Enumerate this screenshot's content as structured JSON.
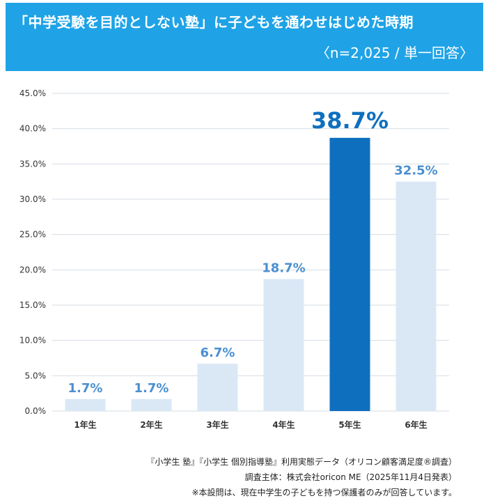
{
  "header": {
    "title": "「中学受験を目的としない塾」に子どもを通わせはじめた時期",
    "subtitle": "〈n=2,025 / 単一回答〉"
  },
  "chart_data": {
    "type": "bar",
    "title": "「中学受験を目的としない塾」に子どもを通わせはじめた時期",
    "subtitle": "〈n=2,025 / 単一回答〉",
    "categories": [
      "1年生",
      "2年生",
      "3年生",
      "4年生",
      "5年生",
      "6年生"
    ],
    "values": [
      1.7,
      1.7,
      6.7,
      18.7,
      38.7,
      32.5
    ],
    "value_labels": [
      "1.7%",
      "1.7%",
      "6.7%",
      "18.7%",
      "38.7%",
      "32.5%"
    ],
    "highlight_index": 4,
    "yticks": [
      "0.0%",
      "5.0%",
      "10.0%",
      "15.0%",
      "20.0%",
      "25.0%",
      "30.0%",
      "35.0%",
      "40.0%",
      "45.0%"
    ],
    "ylim": [
      0,
      45
    ],
    "grid": true,
    "xlabel": "",
    "ylabel": "",
    "colors": {
      "bar": "#dae8f6",
      "highlight": "#0f6fbf",
      "label": "#4a8fd0",
      "highlight_label": "#0f6fbf",
      "grid": "#d6dde6",
      "tick": "#333333"
    }
  },
  "footer": {
    "line1": "『小学生 塾』『小学生 個別指導塾』利用実態データ（オリコン顧客満足度®調査）",
    "line2": "調査主体：株式会社oricon ME（2025年11月4日発表）",
    "line3": "※本設問は、現在中学生の子どもを持つ保護者のみが回答しています。"
  }
}
